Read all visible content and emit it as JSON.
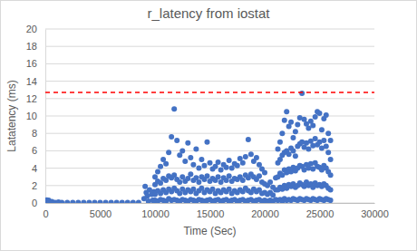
{
  "chart_data": {
    "type": "scatter",
    "title": "r_latency from iostat",
    "x_label": "Time (Sec)",
    "y_label": "Latatency (ms)",
    "xlim": [
      0,
      30000
    ],
    "ylim": [
      0,
      20
    ],
    "xticks": [
      0,
      5000,
      10000,
      15000,
      20000,
      25000,
      30000
    ],
    "yticks": [
      0,
      2,
      4,
      6,
      8,
      10,
      12,
      14,
      16,
      18,
      20
    ],
    "grid": true,
    "series": [
      {
        "type": "scatter",
        "color": "#4472c4",
        "marker": "circle",
        "x": [
          0,
          150,
          300,
          450,
          600,
          900,
          1200,
          1500,
          2000,
          2500,
          3000,
          3500,
          4000,
          4500,
          5000,
          5500,
          6000,
          6500,
          7000,
          7500,
          8000,
          8500,
          9000,
          9100,
          9200,
          9300,
          9400,
          9500,
          9700,
          9800,
          9900,
          10000,
          10000,
          10000,
          10000,
          10250,
          10250,
          10250,
          10250,
          10500,
          10500,
          10500,
          10500,
          10750,
          10750,
          10750,
          10750,
          11000,
          11000,
          11000,
          11000,
          11250,
          11250,
          11250,
          11250,
          11500,
          11500,
          11500,
          11500,
          11750,
          11750,
          11750,
          11750,
          12000,
          12000,
          12000,
          12000,
          12250,
          12250,
          12250,
          12250,
          12500,
          12500,
          12500,
          12500,
          12750,
          12750,
          12750,
          12750,
          13000,
          13000,
          13000,
          13000,
          13250,
          13250,
          13250,
          13250,
          13500,
          13500,
          13500,
          13500,
          13750,
          13750,
          13750,
          13750,
          14000,
          14000,
          14000,
          14000,
          14250,
          14250,
          14250,
          14250,
          14500,
          14500,
          14500,
          14500,
          14750,
          14750,
          14750,
          14750,
          15000,
          15000,
          15000,
          15000,
          15250,
          15250,
          15250,
          15250,
          15500,
          15500,
          15500,
          15500,
          15750,
          15750,
          15750,
          15750,
          16000,
          16000,
          16000,
          16000,
          16250,
          16250,
          16250,
          16250,
          16500,
          16500,
          16500,
          16500,
          16750,
          16750,
          16750,
          16750,
          17000,
          17000,
          17000,
          17000,
          17250,
          17250,
          17250,
          17250,
          17500,
          17500,
          17500,
          17500,
          17750,
          17750,
          17750,
          17750,
          18000,
          18000,
          18000,
          18000,
          18250,
          18250,
          18250,
          18250,
          18500,
          18500,
          18500,
          18500,
          18750,
          18750,
          18750,
          18750,
          19000,
          19000,
          19000,
          19000,
          19250,
          19250,
          19250,
          19250,
          19500,
          19500,
          19500,
          19500,
          19750,
          19750,
          19750,
          19750,
          20000,
          20000,
          20000,
          20000,
          20250,
          20250,
          20250,
          20500,
          20500,
          20500,
          20750,
          20750,
          20750,
          21000,
          21000,
          21000,
          21200,
          21200,
          21200,
          21200,
          21200,
          21400,
          21400,
          21400,
          21400,
          21400,
          21600,
          21600,
          21600,
          21600,
          21600,
          21800,
          21800,
          21800,
          21800,
          21800,
          22000,
          22000,
          22000,
          22000,
          22000,
          22200,
          22200,
          22200,
          22200,
          22200,
          22400,
          22400,
          22400,
          22400,
          22400,
          22600,
          22600,
          22600,
          22600,
          22600,
          22800,
          22800,
          22800,
          22800,
          22800,
          23000,
          23000,
          23000,
          23000,
          23000,
          23200,
          23200,
          23200,
          23200,
          23200,
          23400,
          23400,
          23400,
          23400,
          23400,
          23600,
          23600,
          23600,
          23600,
          23600,
          23800,
          23800,
          23800,
          23800,
          23800,
          24000,
          24000,
          24000,
          24000,
          24000,
          24200,
          24200,
          24200,
          24200,
          24200,
          24400,
          24400,
          24400,
          24400,
          24400,
          24600,
          24600,
          24600,
          24600,
          24600,
          24800,
          24800,
          24800,
          24800,
          24800,
          25000,
          25000,
          25000,
          25000,
          25000,
          25200,
          25200,
          25200,
          25200,
          25200,
          25400,
          25400,
          25400,
          25400,
          25400,
          25600,
          25600,
          25600,
          25600,
          25600,
          25800,
          25800,
          25800,
          25800,
          25800,
          26000,
          26000,
          26000,
          26000,
          26000
        ],
        "values": [
          0.2,
          0.35,
          0.3,
          0.1,
          0.15,
          0.05,
          0.1,
          0.05,
          0.05,
          0.05,
          0.05,
          0.05,
          0.05,
          0.05,
          0.05,
          0.05,
          0.05,
          0.05,
          0.05,
          0.05,
          0.05,
          0.05,
          0.5,
          1.9,
          1.2,
          0.8,
          0.2,
          1.5,
          1.0,
          0.3,
          1.3,
          0.3,
          1.0,
          2.1,
          3.0,
          0.2,
          1.4,
          2.5,
          3.6,
          0.4,
          1.1,
          2.3,
          4.2,
          0.3,
          1.5,
          2.8,
          5.0,
          0.2,
          1.2,
          2.6,
          4.5,
          0.5,
          1.6,
          3.1,
          5.8,
          0.3,
          1.3,
          2.9,
          7.6,
          0.4,
          1.7,
          3.2,
          10.8,
          0.3,
          1.4,
          2.7,
          7.2,
          0.2,
          1.1,
          2.4,
          5.5,
          0.4,
          1.6,
          3.0,
          6.0,
          0.3,
          1.2,
          2.5,
          4.8,
          0.2,
          1.5,
          2.8,
          6.9,
          0.4,
          1.3,
          3.3,
          5.2,
          0.3,
          1.6,
          2.6,
          4.4,
          0.2,
          1.1,
          2.9,
          6.2,
          0.4,
          1.4,
          2.4,
          4.0,
          0.3,
          1.7,
          3.0,
          5.0,
          0.2,
          1.2,
          2.7,
          4.3,
          0.3,
          1.5,
          3.1,
          7.0,
          0.4,
          1.3,
          2.5,
          4.6,
          0.2,
          1.6,
          2.8,
          3.9,
          0.3,
          1.1,
          2.6,
          4.2,
          0.4,
          1.4,
          3.0,
          4.7,
          0.2,
          1.2,
          2.4,
          3.8,
          0.3,
          1.5,
          2.9,
          4.4,
          0.4,
          1.3,
          2.6,
          4.1,
          0.2,
          1.6,
          3.1,
          4.9,
          0.3,
          1.1,
          2.5,
          4.0,
          0.4,
          1.4,
          2.8,
          4.5,
          0.2,
          1.2,
          2.7,
          4.3,
          0.3,
          1.5,
          3.0,
          5.1,
          0.4,
          1.3,
          2.6,
          4.6,
          0.2,
          1.7,
          3.2,
          5.3,
          0.3,
          1.4,
          2.9,
          7.3,
          0.4,
          1.2,
          3.3,
          5.6,
          0.2,
          1.6,
          3.0,
          4.8,
          0.3,
          1.3,
          2.7,
          5.2,
          0.4,
          1.5,
          3.1,
          4.4,
          0.2,
          1.1,
          2.4,
          3.9,
          0.3,
          1.2,
          2.2,
          3.5,
          0.2,
          1.0,
          2.0,
          0.3,
          1.2,
          2.4,
          0.2,
          0.9,
          1.8,
          0.4,
          1.5,
          2.9,
          0.3,
          1.5,
          3.0,
          4.6,
          6.2,
          0.4,
          1.8,
          3.4,
          5.0,
          7.0,
          0.2,
          1.6,
          3.2,
          5.5,
          8.0,
          0.5,
          2.0,
          3.8,
          5.8,
          9.5,
          0.3,
          1.7,
          3.5,
          6.0,
          10.5,
          0.4,
          2.1,
          3.9,
          5.6,
          8.8,
          0.3,
          1.9,
          3.6,
          6.3,
          9.3,
          0.5,
          2.2,
          4.1,
          6.0,
          7.5,
          0.4,
          1.8,
          3.7,
          5.4,
          8.2,
          0.3,
          2.0,
          4.0,
          6.5,
          9.0,
          0.5,
          2.3,
          4.3,
          6.8,
          9.8,
          0.4,
          2.1,
          4.2,
          7.0,
          12.6,
          0.3,
          1.9,
          3.8,
          6.4,
          9.6,
          0.5,
          2.4,
          4.4,
          6.9,
          9.1,
          0.4,
          2.0,
          4.0,
          6.2,
          8.6,
          0.3,
          2.2,
          4.5,
          7.1,
          9.4,
          0.5,
          1.8,
          3.9,
          6.6,
          8.9,
          0.4,
          2.3,
          4.6,
          7.4,
          9.9,
          0.3,
          2.0,
          4.2,
          6.7,
          10.5,
          0.5,
          2.1,
          4.1,
          7.0,
          10.3,
          0.4,
          1.9,
          3.8,
          6.3,
          8.4,
          0.3,
          2.2,
          4.3,
          7.2,
          9.7,
          0.5,
          2.0,
          4.0,
          6.5,
          10.1,
          0.4,
          1.7,
          3.6,
          5.8,
          8.0,
          0.3,
          1.5,
          3.2,
          5.0,
          7.2
        ]
      },
      {
        "type": "line",
        "color": "#ff0000",
        "line_style": "dashed",
        "x": [
          0,
          30000
        ],
        "values": [
          12.7,
          12.7
        ]
      }
    ]
  }
}
